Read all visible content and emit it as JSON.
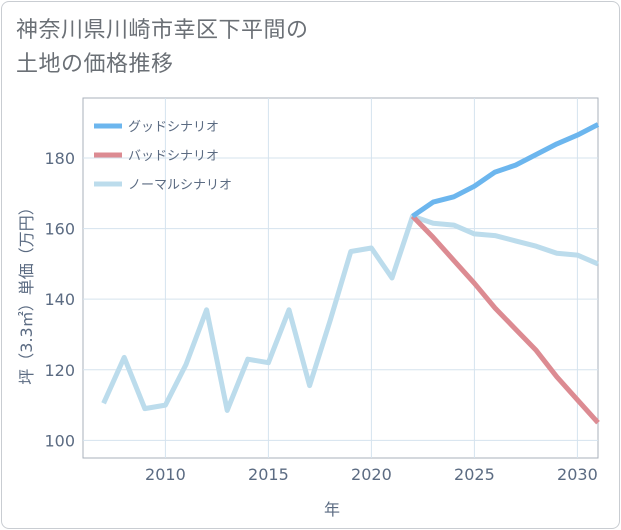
{
  "title": {
    "line1": "神奈川県川崎市幸区下平間の",
    "line2": "土地の価格推移"
  },
  "chart_data": {
    "type": "line",
    "xlabel": "年",
    "ylabel": "坪（3.3㎡）単価（万円）",
    "xlim": [
      2006,
      2031
    ],
    "ylim": [
      95,
      197
    ],
    "xticks": [
      2010,
      2015,
      2020,
      2025,
      2030
    ],
    "yticks": [
      100,
      120,
      140,
      160,
      180
    ],
    "grid": true,
    "legend_position": "top-left",
    "series": [
      {
        "name": "グッドシナリオ",
        "color": "#6cb6ee",
        "x": [
          2022,
          2023,
          2024,
          2025,
          2026,
          2027,
          2028,
          2029,
          2030,
          2031
        ],
        "values": [
          163.5,
          167.5,
          169,
          172,
          176,
          178,
          181,
          184,
          186.5,
          189.5
        ]
      },
      {
        "name": "バッドシナリオ",
        "color": "#dc8b92",
        "x": [
          2022,
          2023,
          2024,
          2025,
          2026,
          2027,
          2028,
          2029,
          2030,
          2031
        ],
        "values": [
          163.5,
          157.5,
          151,
          144.5,
          137.5,
          131.5,
          125.5,
          118,
          111.5,
          105
        ]
      },
      {
        "name": "ノーマルシナリオ",
        "color": "#bcdcec",
        "x": [
          2007,
          2008,
          2009,
          2010,
          2011,
          2012,
          2013,
          2014,
          2015,
          2016,
          2017,
          2018,
          2019,
          2020,
          2021,
          2022,
          2023,
          2024,
          2025,
          2026,
          2027,
          2028,
          2029,
          2030,
          2031
        ],
        "values": [
          110.5,
          123.5,
          109,
          110,
          121.5,
          137,
          108.5,
          123,
          122,
          137,
          115.5,
          134,
          153.5,
          154.5,
          146,
          163.5,
          161.5,
          161,
          158.5,
          158,
          156.5,
          155,
          153,
          152.5,
          150
        ]
      }
    ]
  }
}
